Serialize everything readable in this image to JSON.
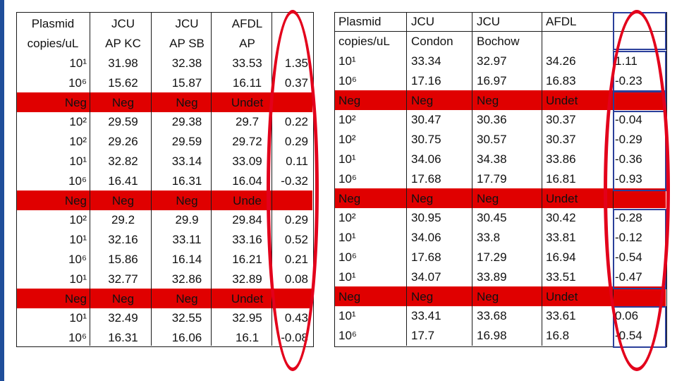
{
  "table_left": {
    "header": [
      [
        "Plasmid",
        "JCU",
        "JCU",
        "AFDL",
        ""
      ],
      [
        "copies/uL",
        "AP KC",
        "AP SB",
        "AP",
        ""
      ]
    ],
    "rows": [
      {
        "plasmid": "10¹",
        "neg": false,
        "cells": [
          "31.98",
          "32.38",
          "33.53",
          "1.35"
        ]
      },
      {
        "plasmid": "10⁶",
        "neg": false,
        "cells": [
          "15.62",
          "15.87",
          "16.11",
          "0.37"
        ]
      },
      {
        "plasmid": "Neg",
        "neg": true,
        "cells": [
          "Neg",
          "Neg",
          "Undet",
          ""
        ]
      },
      {
        "plasmid": "10²",
        "neg": false,
        "cells": [
          "29.59",
          "29.38",
          "29.7",
          "0.22"
        ]
      },
      {
        "plasmid": "10²",
        "neg": false,
        "cells": [
          "29.26",
          "29.59",
          "29.72",
          "0.29"
        ]
      },
      {
        "plasmid": "10¹",
        "neg": false,
        "cells": [
          "32.82",
          "33.14",
          "33.09",
          "0.11"
        ]
      },
      {
        "plasmid": "10⁶",
        "neg": false,
        "cells": [
          "16.41",
          "16.31",
          "16.04",
          "-0.32"
        ]
      },
      {
        "plasmid": "Neg",
        "neg": true,
        "cells": [
          "Neg",
          "Neg",
          "Unde",
          ""
        ]
      },
      {
        "plasmid": "10²",
        "neg": false,
        "cells": [
          "29.2",
          "29.9",
          "29.84",
          "0.29"
        ]
      },
      {
        "plasmid": "10¹",
        "neg": false,
        "cells": [
          "32.16",
          "33.11",
          "33.16",
          "0.52"
        ]
      },
      {
        "plasmid": "10⁶",
        "neg": false,
        "cells": [
          "15.86",
          "16.14",
          "16.21",
          "0.21"
        ]
      },
      {
        "plasmid": "10¹",
        "neg": false,
        "cells": [
          "32.77",
          "32.86",
          "32.89",
          "0.08"
        ]
      },
      {
        "plasmid": "Neg",
        "neg": true,
        "cells": [
          "Neg",
          "Neg",
          "Undet",
          ""
        ]
      },
      {
        "plasmid": "10¹",
        "neg": false,
        "cells": [
          "32.49",
          "32.55",
          "32.95",
          "0.43"
        ]
      },
      {
        "plasmid": "10⁶",
        "neg": false,
        "cells": [
          "16.31",
          "16.06",
          "16.1",
          "-0.08"
        ]
      }
    ]
  },
  "table_right": {
    "header": [
      [
        "Plasmid",
        "JCU",
        "JCU",
        "AFDL",
        ""
      ],
      [
        "copies/uL",
        "Condon",
        "Bochow",
        "",
        ""
      ]
    ],
    "rows": [
      {
        "plasmid": "10¹",
        "neg": false,
        "cells": [
          "33.34",
          "32.97",
          "34.26",
          "1.11"
        ]
      },
      {
        "plasmid": "10⁶",
        "neg": false,
        "cells": [
          "17.16",
          "16.97",
          "16.83",
          "-0.23"
        ]
      },
      {
        "plasmid": "Neg",
        "neg": true,
        "cells": [
          "Neg",
          "Neg",
          "Undet",
          ""
        ]
      },
      {
        "plasmid": "10²",
        "neg": false,
        "cells": [
          "30.47",
          "30.36",
          "30.37",
          "-0.04"
        ]
      },
      {
        "plasmid": "10²",
        "neg": false,
        "cells": [
          "30.75",
          "30.57",
          "30.37",
          "-0.29"
        ]
      },
      {
        "plasmid": "10¹",
        "neg": false,
        "cells": [
          "34.06",
          "34.38",
          "33.86",
          "-0.36"
        ]
      },
      {
        "plasmid": "10⁶",
        "neg": false,
        "cells": [
          "17.68",
          "17.79",
          "16.81",
          "-0.93"
        ]
      },
      {
        "plasmid": "Neg",
        "neg": true,
        "cells": [
          "Neg",
          "Neg",
          "Undet",
          ""
        ]
      },
      {
        "plasmid": "10²",
        "neg": false,
        "cells": [
          "30.95",
          "30.45",
          "30.42",
          "-0.28"
        ]
      },
      {
        "plasmid": "10¹",
        "neg": false,
        "cells": [
          "34.06",
          "33.8",
          "33.81",
          "-0.12"
        ]
      },
      {
        "plasmid": "10⁶",
        "neg": false,
        "cells": [
          "17.68",
          "17.29",
          "16.94",
          "-0.54"
        ]
      },
      {
        "plasmid": "10¹",
        "neg": false,
        "cells": [
          "34.07",
          "33.89",
          "33.51",
          "-0.47"
        ]
      },
      {
        "plasmid": "Neg",
        "neg": true,
        "cells": [
          "Neg",
          "Neg",
          "Undet",
          ""
        ]
      },
      {
        "plasmid": "10¹",
        "neg": false,
        "cells": [
          "33.41",
          "33.68",
          "33.61",
          "0.06"
        ]
      },
      {
        "plasmid": "10⁶",
        "neg": false,
        "cells": [
          "17.7",
          "16.98",
          "16.8",
          "-0.54"
        ]
      }
    ]
  },
  "colors": {
    "negative_row": "#e00000",
    "highlight_oval": "#e3001b",
    "accent": "#1f4e9a",
    "diff_column_border": "#2a3f9a"
  }
}
